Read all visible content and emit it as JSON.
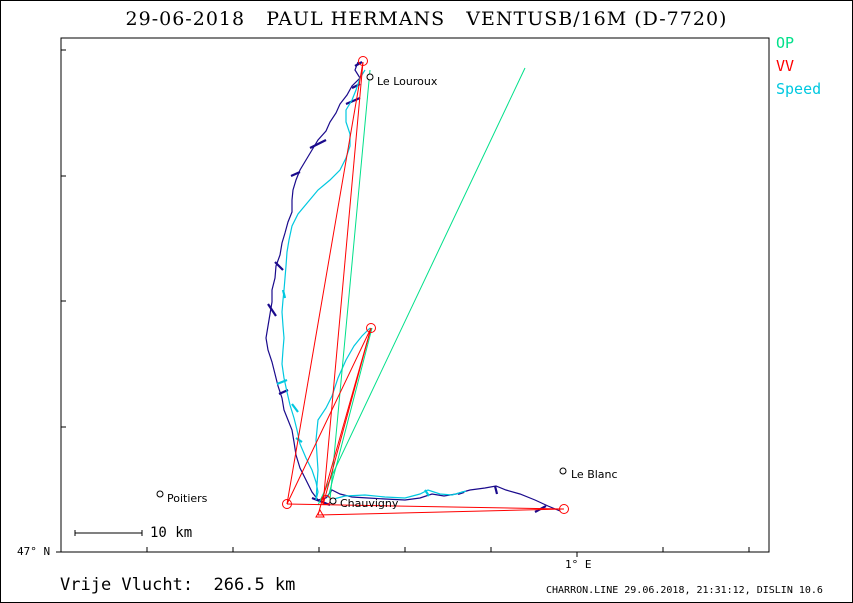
{
  "header": {
    "title": "29-06-2018   PAUL HERMANS   VENTUSB/16M (D-7720)"
  },
  "legend": {
    "items": [
      {
        "label": "OP",
        "color": "#00e08a"
      },
      {
        "label": "VV",
        "color": "#ff0000"
      },
      {
        "label": "Speed",
        "color": "#00c8e0"
      }
    ]
  },
  "axes": {
    "lat_label": "47° N",
    "lon_label": "1° E"
  },
  "scale": {
    "label": "10 km"
  },
  "places": [
    {
      "name": "Le Louroux"
    },
    {
      "name": "Poitiers"
    },
    {
      "name": "Chauvigny"
    },
    {
      "name": "Le Blanc"
    }
  ],
  "footer": {
    "distance": "Vrije Vlucht:  266.5 km",
    "credits": "CHARRON.LINE 29.06.2018, 21:31:12, DISLIN 10.6"
  },
  "colors": {
    "track": "#1a0a8c",
    "speed_track": "#00c8e0",
    "op": "#00e08a",
    "vv": "#ff0000"
  }
}
